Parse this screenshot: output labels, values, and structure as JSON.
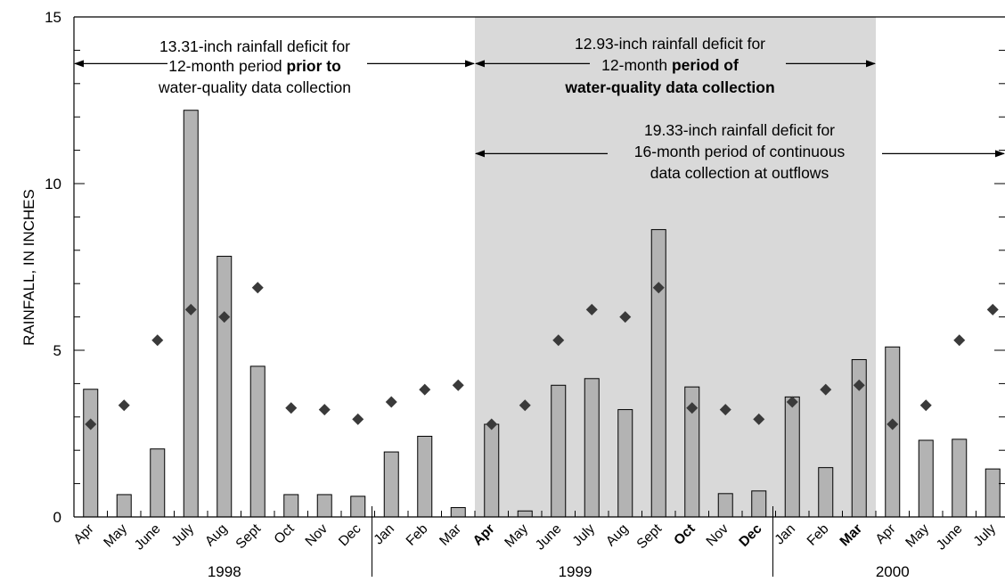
{
  "chart_data": {
    "type": "bar",
    "ylabel": "RAINFALL, IN INCHES",
    "xlabel": "",
    "ylim": [
      0,
      15
    ],
    "yticks": [
      "0",
      "5",
      "10",
      "15"
    ],
    "categories": [
      "Apr",
      "May",
      "June",
      "July",
      "Aug",
      "Sept",
      "Oct",
      "Nov",
      "Dec",
      "Jan",
      "Feb",
      "Mar",
      "Apr",
      "May",
      "June",
      "July",
      "Aug",
      "Sept",
      "Oct",
      "Nov",
      "Dec",
      "Jan",
      "Feb",
      "Mar",
      "Apr",
      "May",
      "June",
      "July"
    ],
    "bold_categories": [
      12,
      18,
      20,
      23
    ],
    "years": [
      {
        "label": "1998",
        "from": 0,
        "to": 8
      },
      {
        "label": "1999",
        "from": 9,
        "to": 20
      },
      {
        "label": "2000",
        "from": 21,
        "to": 27
      }
    ],
    "year_separators_after": [
      8,
      20
    ],
    "shaded_period": {
      "from": 12,
      "to": 23,
      "color": "#d9d9d9"
    },
    "series": [
      {
        "type": "bar",
        "color": "#b3b3b3",
        "values": [
          3.83,
          0.67,
          2.04,
          12.2,
          7.82,
          4.52,
          0.67,
          0.67,
          0.62,
          1.95,
          2.42,
          0.28,
          2.78,
          0.18,
          3.95,
          4.15,
          3.22,
          8.62,
          3.9,
          0.7,
          0.78,
          3.6,
          1.48,
          4.72,
          5.1,
          2.3,
          2.33,
          1.44
        ]
      },
      {
        "type": "scatter",
        "marker": "diamond",
        "color": "#3a3a3a",
        "values": [
          2.78,
          3.35,
          5.3,
          6.22,
          6.0,
          6.88,
          3.27,
          3.22,
          2.93,
          3.45,
          3.82,
          3.95,
          2.78,
          3.35,
          5.3,
          6.22,
          6.0,
          6.88,
          3.27,
          3.22,
          2.93,
          3.45,
          3.82,
          3.95,
          2.78,
          3.35,
          5.3,
          6.22
        ]
      }
    ],
    "annotations": [
      {
        "lines": [
          [
            "13.31-inch rainfall deficit for"
          ],
          [
            "12-month period ",
            "prior to"
          ],
          [
            "water-quality data collection"
          ]
        ],
        "bold_parts": [
          "prior to"
        ],
        "arrow": {
          "from": -0.5,
          "to": 11.5,
          "y": 13.6
        }
      },
      {
        "lines": [
          [
            "12.93-inch rainfall deficit for"
          ],
          [
            "12-month ",
            "period of"
          ],
          [
            "water-quality data collection"
          ]
        ],
        "bold_parts": [
          "period of",
          "water-quality data collection"
        ],
        "arrow": {
          "from": 11.5,
          "to": 23.5,
          "y": 13.6
        }
      },
      {
        "lines": [
          [
            "19.33-inch rainfall deficit for"
          ],
          [
            "16-month period of continuous"
          ],
          [
            "data collection at outflows"
          ]
        ],
        "bold_parts": [],
        "arrow": {
          "from": 11.5,
          "to": 27.5,
          "y": 10.9
        }
      }
    ]
  }
}
